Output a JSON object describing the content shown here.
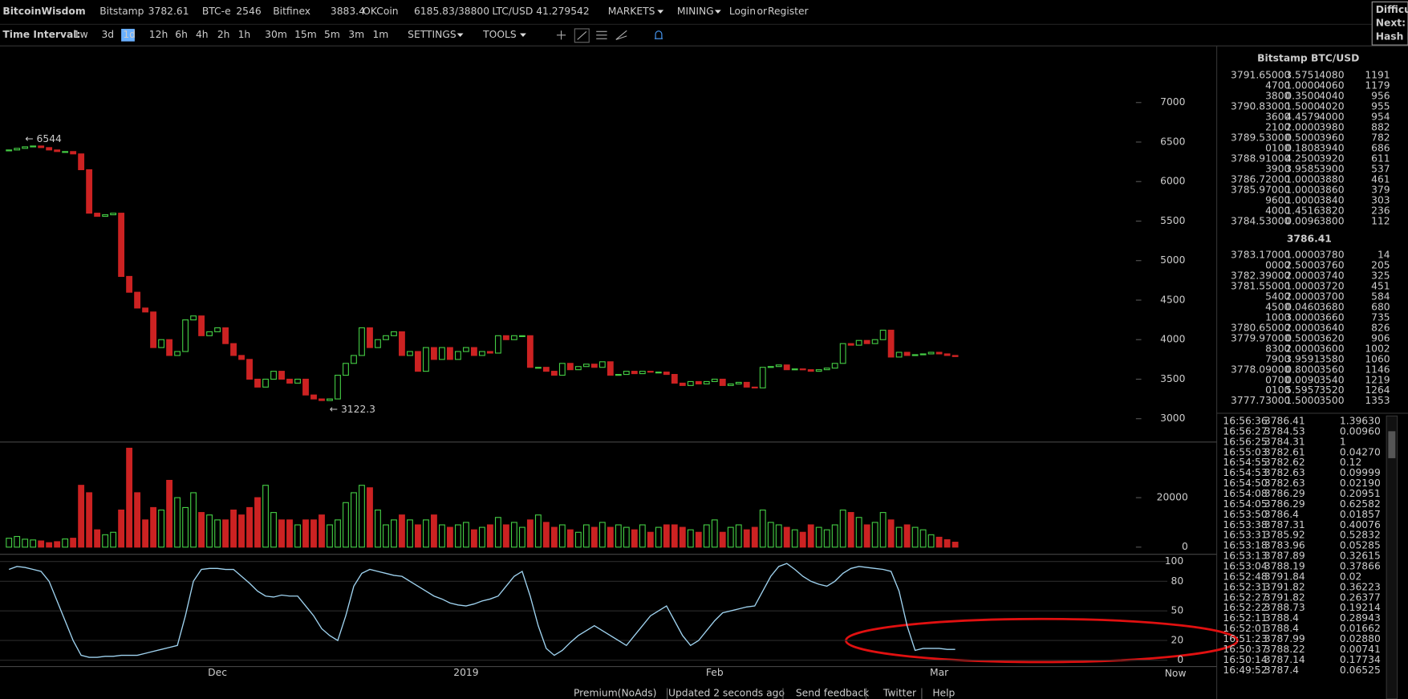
{
  "header": {
    "logo": "BitcoinWisdom",
    "tickers": [
      {
        "name": "Bitstamp",
        "price": "3782.61"
      },
      {
        "name": "BTC-e",
        "price": "2546"
      },
      {
        "name": "Bitfinex",
        "price": "3883.4"
      },
      {
        "name": "OKCoin",
        "price": "6185.83/38800"
      },
      {
        "name": "LTC/USD",
        "price": "41.279542"
      }
    ],
    "menus": [
      "MARKETS",
      "MINING"
    ],
    "login": "Login",
    "or": "or",
    "register": "Register",
    "side": [
      "Difficul",
      "Next:",
      "Hash R"
    ]
  },
  "toolbar": {
    "label": "Time Interval:",
    "intervals": [
      "1w",
      "3d",
      "1d",
      "12h",
      "6h",
      "4h",
      "2h",
      "1h",
      "30m",
      "15m",
      "5m",
      "3m",
      "1m"
    ],
    "selected": 2,
    "settings": "SETTINGS",
    "tools": "TOOLS"
  },
  "chart_data": {
    "type": "candlestick",
    "up_color": "#44cc44",
    "down_color": "#cc2222",
    "categories": [
      null,
      null,
      null,
      null,
      null,
      null,
      null,
      null,
      null,
      null,
      null,
      null,
      null,
      null,
      null,
      null,
      null,
      null,
      null,
      null,
      null,
      null,
      null,
      null,
      null,
      null,
      "Dec",
      null,
      null,
      null,
      null,
      null,
      null,
      null,
      null,
      null,
      null,
      null,
      null,
      null,
      null,
      null,
      null,
      null,
      null,
      null,
      null,
      null,
      null,
      null,
      null,
      null,
      null,
      null,
      null,
      null,
      null,
      "2019",
      null,
      null,
      null,
      null,
      null,
      null,
      null,
      null,
      null,
      null,
      null,
      null,
      null,
      null,
      null,
      null,
      null,
      null,
      null,
      null,
      null,
      null,
      null,
      null,
      null,
      null,
      null,
      null,
      null,
      null,
      "Feb",
      null,
      null,
      null,
      null,
      null,
      null,
      null,
      null,
      null,
      null,
      null,
      null,
      null,
      null,
      null,
      null,
      null,
      null,
      null,
      null,
      null,
      null,
      null,
      null,
      null,
      null,
      null,
      "Mar",
      null,
      null
    ],
    "close": [
      6400,
      6420,
      6440,
      6450,
      6430,
      6400,
      6380,
      6380,
      6350,
      6150,
      5600,
      5560,
      5580,
      5600,
      4800,
      4600,
      4400,
      4350,
      3900,
      4000,
      3800,
      3850,
      4250,
      4300,
      4050,
      4100,
      4150,
      3950,
      3800,
      3750,
      3500,
      3400,
      3500,
      3600,
      3500,
      3450,
      3500,
      3300,
      3250,
      3230,
      3250,
      3550,
      3700,
      3800,
      4150,
      3900,
      4000,
      4050,
      4100,
      3800,
      3850,
      3600,
      3900,
      3750,
      3900,
      3750,
      3850,
      3900,
      3800,
      3850,
      3830,
      4050,
      4000,
      4050,
      4050,
      3650,
      3650,
      3600,
      3550,
      3700,
      3620,
      3660,
      3690,
      3650,
      3720,
      3550,
      3560,
      3600,
      3570,
      3600,
      3590,
      3590,
      3560,
      3450,
      3420,
      3470,
      3440,
      3470,
      3500,
      3420,
      3440,
      3460,
      3400,
      3390,
      3650,
      3660,
      3680,
      3620,
      3630,
      3620,
      3600,
      3620,
      3640,
      3700,
      3950,
      3930,
      3990,
      3950,
      4000,
      4120,
      3780,
      3840,
      3800,
      3810,
      3820,
      3840,
      3820,
      3800,
      3786
    ],
    "ylim": [
      2705,
      7705
    ],
    "yticks": [
      3000,
      3500,
      4000,
      4500,
      5000,
      5500,
      6000,
      6500,
      7000
    ],
    "annotations": [
      "← 6544",
      "← 3122.3"
    ],
    "now": "Now",
    "volume": {
      "values": [
        3600,
        4300,
        3200,
        2900,
        2500,
        1800,
        2200,
        3300,
        3600,
        25000,
        22000,
        7000,
        5000,
        6000,
        15000,
        40000,
        22000,
        11000,
        16000,
        15000,
        27000,
        20000,
        16000,
        22000,
        14000,
        13000,
        11000,
        11000,
        15000,
        13000,
        16000,
        20000,
        25000,
        14000,
        11000,
        11000,
        9000,
        11000,
        11000,
        13000,
        9000,
        11000,
        18000,
        22000,
        25000,
        24000,
        15000,
        9000,
        11000,
        13000,
        11000,
        9000,
        11000,
        13000,
        9000,
        8000,
        9000,
        10000,
        7000,
        8000,
        9000,
        12000,
        9000,
        10000,
        8000,
        11000,
        13000,
        10000,
        8000,
        9000,
        7000,
        6000,
        9000,
        8000,
        10000,
        8000,
        9000,
        8000,
        7000,
        9000,
        6000,
        8000,
        9000,
        9000,
        8000,
        7000,
        6000,
        9000,
        11000,
        6000,
        8000,
        9000,
        7000,
        8000,
        15000,
        10000,
        9000,
        8000,
        7000,
        6000,
        9000,
        8000,
        7000,
        9000,
        15000,
        14000,
        12000,
        9000,
        10000,
        14000,
        11000,
        8000,
        9000,
        8000,
        7000,
        5000,
        4000,
        3000,
        2000
      ],
      "ylim": [
        -2900,
        42500
      ],
      "yticks": [
        0,
        20000
      ]
    },
    "stoch": {
      "color": "#9fd3f0",
      "values": [
        92,
        95,
        94,
        92,
        90,
        80,
        60,
        40,
        20,
        5,
        3,
        3,
        4,
        4,
        5,
        5,
        5,
        7,
        9,
        11,
        13,
        15,
        45,
        80,
        92,
        93,
        93,
        92,
        92,
        85,
        78,
        70,
        65,
        64,
        66,
        65,
        65,
        55,
        45,
        32,
        25,
        20,
        45,
        75,
        88,
        92,
        90,
        88,
        86,
        85,
        80,
        75,
        70,
        65,
        62,
        58,
        56,
        55,
        57,
        60,
        62,
        65,
        75,
        85,
        90,
        65,
        35,
        12,
        5,
        10,
        18,
        25,
        30,
        35,
        30,
        25,
        20,
        15,
        25,
        35,
        45,
        50,
        55,
        40,
        25,
        15,
        20,
        30,
        40,
        48,
        50,
        52,
        54,
        55,
        70,
        85,
        95,
        98,
        92,
        85,
        80,
        77,
        75,
        80,
        88,
        93,
        95,
        94,
        93,
        92,
        90,
        70,
        35,
        10,
        12,
        12,
        12,
        11,
        11
      ],
      "ylim": [
        -6.4,
        107.3
      ],
      "yticks": [
        0,
        20,
        50,
        80,
        100
      ]
    }
  },
  "order_book": {
    "title": "Bitstamp BTC/USD",
    "last": "3786.41",
    "asks": [
      [
        "3791.65000",
        "3.5751",
        "4080",
        "1191"
      ],
      [
        "4700",
        "1.0000",
        "4060",
        "1179"
      ],
      [
        "3800",
        "0.3500",
        "4040",
        "956"
      ],
      [
        "3790.83000",
        "1.5000",
        "4020",
        "955"
      ],
      [
        "3600",
        "4.4579",
        "4000",
        "954"
      ],
      [
        "2100",
        "2.0000",
        "3980",
        "882"
      ],
      [
        "3789.53000",
        "0.5000",
        "3960",
        "782"
      ],
      [
        "0100",
        "0.1808",
        "3940",
        "686"
      ],
      [
        "3788.91000",
        "4.2500",
        "3920",
        "611"
      ],
      [
        "3900",
        "3.9585",
        "3900",
        "537"
      ],
      [
        "3786.72000",
        "1.0000",
        "3880",
        "461"
      ],
      [
        "3785.97000",
        "1.0000",
        "3860",
        "379"
      ],
      [
        "9600",
        "1.0000",
        "3840",
        "303"
      ],
      [
        "4000",
        "1.4516",
        "3820",
        "236"
      ],
      [
        "3784.53000",
        "0.0096",
        "3800",
        "112"
      ]
    ],
    "bids": [
      [
        "3783.17000",
        "1.0000",
        "3780",
        "14"
      ],
      [
        "0000",
        "2.5000",
        "3760",
        "205"
      ],
      [
        "3782.39000",
        "2.0000",
        "3740",
        "325"
      ],
      [
        "3781.55000",
        "1.0000",
        "3720",
        "451"
      ],
      [
        "5400",
        "2.0000",
        "3700",
        "584"
      ],
      [
        "4500",
        "0.0460",
        "3680",
        "680"
      ],
      [
        "1000",
        "3.0000",
        "3660",
        "735"
      ],
      [
        "3780.65000",
        "2.0000",
        "3640",
        "826"
      ],
      [
        "3779.97000",
        "0.5000",
        "3620",
        "906"
      ],
      [
        "8300",
        "2.0000",
        "3600",
        "1002"
      ],
      [
        "7900",
        "3.9591",
        "3580",
        "1060"
      ],
      [
        "3778.09000",
        "0.8000",
        "3560",
        "1146"
      ],
      [
        "0700",
        "0.0090",
        "3540",
        "1219"
      ],
      [
        "0100",
        "5.5957",
        "3520",
        "1264"
      ],
      [
        "3777.73000",
        "1.5000",
        "3500",
        "1353"
      ]
    ]
  },
  "trades": [
    {
      "time": "16:56:36",
      "price": "3786.41",
      "amount": "1.39630",
      "color": "#44cc44"
    },
    {
      "time": "16:56:27",
      "price": "3784.53",
      "amount": "0.00960",
      "color": "#44cc44"
    },
    {
      "time": "16:56:25",
      "price": "3784.31",
      "amount": "1",
      "color": "#44cc44"
    },
    {
      "time": "16:55:03",
      "price": "3782.61",
      "amount": "0.04270",
      "color": "#dd3333"
    },
    {
      "time": "16:54:55",
      "price": "3782.62",
      "amount": "0.12",
      "color": "#dd3333"
    },
    {
      "time": "16:54:53",
      "price": "3782.63",
      "amount": "0.09999",
      "color": "#dd3333"
    },
    {
      "time": "16:54:50",
      "price": "3782.63",
      "amount": "0.02190",
      "color": "#dd3333"
    },
    {
      "time": "16:54:08",
      "price": "3786.29",
      "amount": "0.20951",
      "color": "#dd3333"
    },
    {
      "time": "16:54:05",
      "price": "3786.29",
      "amount": "0.62582",
      "color": "#dd3333"
    },
    {
      "time": "16:53:50",
      "price": "3786.4",
      "amount": "0.01857",
      "color": "#dd3333"
    },
    {
      "time": "16:53:38",
      "price": "3787.31",
      "amount": "0.40076",
      "color": "#dd3333"
    },
    {
      "time": "16:53:31",
      "price": "3785.92",
      "amount": "0.52832",
      "color": "#dd3333"
    },
    {
      "time": "16:53:18",
      "price": "3783.96",
      "amount": "0.05285",
      "color": "#dd3333"
    },
    {
      "time": "16:53:13",
      "price": "3787.89",
      "amount": "0.32615",
      "color": "#44cc44"
    },
    {
      "time": "16:53:04",
      "price": "3788.19",
      "amount": "0.37866",
      "color": "#dd3333"
    },
    {
      "time": "16:52:48",
      "price": "3791.84",
      "amount": "0.02",
      "color": "#dd3333"
    },
    {
      "time": "16:52:31",
      "price": "3791.82",
      "amount": "0.36223",
      "color": "#44cc44"
    },
    {
      "time": "16:52:27",
      "price": "3791.82",
      "amount": "0.26377",
      "color": "#44cc44"
    },
    {
      "time": "16:52:22",
      "price": "3788.73",
      "amount": "0.19214",
      "color": "#44cc44"
    },
    {
      "time": "16:52:11",
      "price": "3788.4",
      "amount": "0.28943",
      "color": "#44cc44"
    },
    {
      "time": "16:52:01",
      "price": "3788.4",
      "amount": "0.01662",
      "color": "#44cc44"
    },
    {
      "time": "16:51:23",
      "price": "3787.99",
      "amount": "0.02880",
      "color": "#44cc44"
    },
    {
      "time": "16:50:37",
      "price": "3788.22",
      "amount": "0.00741",
      "color": "#44cc44"
    },
    {
      "time": "16:50:14",
      "price": "3787.14",
      "amount": "0.17734",
      "color": "#dd3333"
    },
    {
      "time": "16:49:52",
      "price": "3787.4",
      "amount": "0.06525",
      "color": "#44cc44"
    }
  ],
  "footer": {
    "links": [
      "Premium(NoAds)",
      "Updated 2 seconds ago",
      "Send feedback",
      "Twitter",
      "Help"
    ]
  }
}
